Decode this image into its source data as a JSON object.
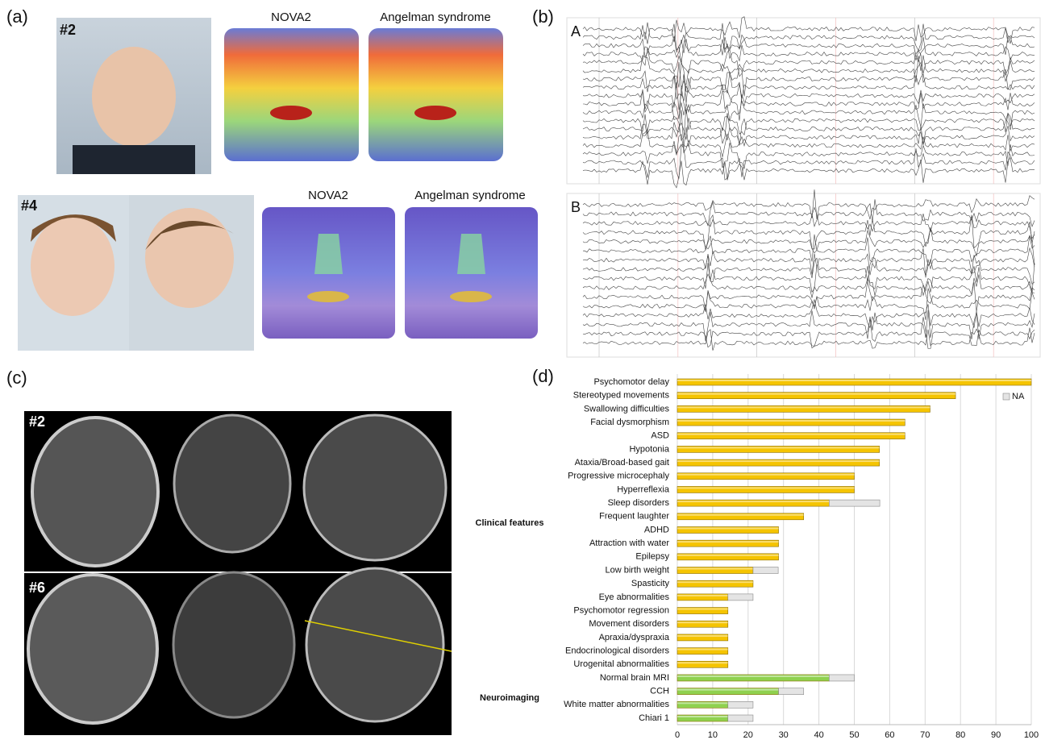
{
  "panel_labels": [
    "(a)",
    "(b)",
    "(c)",
    "(d)"
  ],
  "panel_a": {
    "cases": [
      {
        "id": "#2",
        "heatmap_titles": [
          "NOVA2",
          "Angelman syndrome"
        ]
      },
      {
        "id": "#4",
        "heatmap_titles": [
          "NOVA2",
          "Angelman syndrome"
        ]
      }
    ]
  },
  "panel_b": {
    "traces": [
      "A",
      "B"
    ]
  },
  "panel_c": {
    "cases": [
      "#2",
      "#6"
    ]
  },
  "chart_data": {
    "type": "hbar",
    "categories": [
      "Psychomotor delay",
      "Stereotyped movements",
      "Swallowing difficulties",
      "Facial dysmorphism",
      "ASD",
      "Hypotonia",
      "Ataxia/Broad-based gait",
      "Progressive microcephaly",
      "Hyperreflexia",
      "Sleep disorders",
      "Frequent laughter",
      "ADHD",
      "Attraction with water",
      "Epilepsy",
      "Low birth weight",
      "Spasticity",
      "Eye abnormalities",
      "Psychomotor regression",
      "Movement disorders",
      "Apraxia/dyspraxia",
      "Endocrinological disorders",
      "Urogenital abnormalities",
      "Normal brain MRI",
      "CCH",
      "White matter abnormalities",
      "Chiari 1"
    ],
    "group_labels": [
      "Clinical features",
      "Neuroimaging"
    ],
    "series": [
      {
        "colors": [
          "#f5c400",
          "#f5c400",
          "#f5c400",
          "#f5c400",
          "#f5c400",
          "#f5c400",
          "#f5c400",
          "#f5c400",
          "#f5c400",
          "#f5c400",
          "#f5c400",
          "#f5c400",
          "#f5c400",
          "#f5c400",
          "#f5c400",
          "#f5c400",
          "#f5c400",
          "#f5c400",
          "#f5c400",
          "#f5c400",
          "#f5c400",
          "#f5c400",
          "#8fd14f",
          "#8fd14f",
          "#8fd14f",
          "#8fd14f"
        ],
        "values": [
          100,
          78.6,
          71.4,
          64.3,
          64.3,
          57.1,
          57.1,
          50,
          50,
          42.9,
          35.7,
          28.6,
          28.6,
          28.6,
          21.4,
          21.4,
          14.3,
          14.3,
          14.3,
          14.3,
          14.3,
          14.3,
          42.9,
          28.6,
          14.3,
          14.3
        ]
      },
      {
        "name": "NA",
        "color": "#e4e4e4",
        "values": [
          null,
          null,
          null,
          null,
          null,
          null,
          null,
          null,
          null,
          14.3,
          null,
          null,
          null,
          null,
          7.1,
          null,
          7.1,
          null,
          null,
          null,
          null,
          null,
          7.1,
          7.1,
          7.1,
          7.1
        ]
      }
    ],
    "xlim": [
      0,
      100
    ],
    "xticks": [
      0,
      10,
      20,
      30,
      40,
      50,
      60,
      70,
      80,
      90,
      100
    ],
    "grid": true,
    "legend": "top-right"
  }
}
